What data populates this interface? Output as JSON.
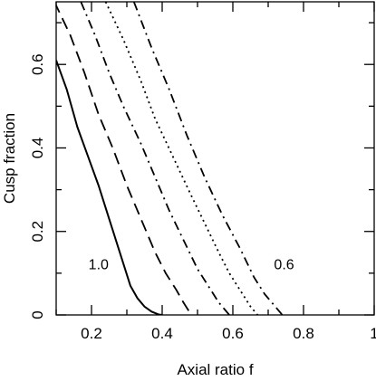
{
  "chart_data": {
    "type": "line",
    "title": "",
    "xlabel": "Axial ratio f",
    "ylabel": "Cusp fraction",
    "xlim": [
      0.1,
      1.0
    ],
    "ylim": [
      0.0,
      0.75
    ],
    "grid": false,
    "x_ticks": [
      {
        "value": 0.2,
        "label": "0.2"
      },
      {
        "value": 0.4,
        "label": "0.4"
      },
      {
        "value": 0.6,
        "label": "0.6"
      },
      {
        "value": 0.8,
        "label": "0.8"
      },
      {
        "value": 1.0,
        "label": "1"
      }
    ],
    "y_ticks": [
      {
        "value": 0.0,
        "label": "0"
      },
      {
        "value": 0.2,
        "label": "0.2"
      },
      {
        "value": 0.4,
        "label": "0.4"
      },
      {
        "value": 0.6,
        "label": "0.6"
      }
    ],
    "annotations": [
      {
        "text": "1.0",
        "x": 0.22,
        "y": 0.11
      },
      {
        "text": "0.6",
        "x": 0.745,
        "y": 0.11
      }
    ],
    "series": [
      {
        "style": "solid",
        "color": "#000000",
        "x": [
          0.1,
          0.13,
          0.16,
          0.19,
          0.22,
          0.25,
          0.28,
          0.31,
          0.33,
          0.35,
          0.37,
          0.39,
          0.4
        ],
        "y": [
          0.61,
          0.54,
          0.45,
          0.38,
          0.31,
          0.23,
          0.15,
          0.07,
          0.04,
          0.02,
          0.008,
          0.001,
          0.0
        ]
      },
      {
        "style": "long-dash",
        "color": "#000000",
        "x": [
          0.095,
          0.14,
          0.18,
          0.22,
          0.26,
          0.3,
          0.34,
          0.38,
          0.41,
          0.44,
          0.46,
          0.475,
          0.48
        ],
        "y": [
          0.75,
          0.67,
          0.58,
          0.48,
          0.4,
          0.31,
          0.23,
          0.15,
          0.1,
          0.06,
          0.03,
          0.01,
          0.0
        ]
      },
      {
        "style": "dash-dot",
        "color": "#000000",
        "x": [
          0.17,
          0.21,
          0.25,
          0.29,
          0.34,
          0.38,
          0.42,
          0.46,
          0.5,
          0.53,
          0.56,
          0.58,
          0.59
        ],
        "y": [
          0.75,
          0.67,
          0.58,
          0.5,
          0.41,
          0.33,
          0.25,
          0.18,
          0.11,
          0.07,
          0.03,
          0.01,
          0.0
        ]
      },
      {
        "style": "dotted",
        "color": "#000000",
        "x": [
          0.24,
          0.29,
          0.34,
          0.38,
          0.43,
          0.48,
          0.52,
          0.56,
          0.59,
          0.62,
          0.65,
          0.67
        ],
        "y": [
          0.75,
          0.66,
          0.56,
          0.47,
          0.38,
          0.29,
          0.22,
          0.15,
          0.1,
          0.06,
          0.02,
          0.0
        ]
      },
      {
        "style": "dash-dot",
        "color": "#000000",
        "x": [
          0.32,
          0.37,
          0.42,
          0.47,
          0.52,
          0.57,
          0.62,
          0.66,
          0.69,
          0.72,
          0.74
        ],
        "y": [
          0.75,
          0.64,
          0.54,
          0.43,
          0.33,
          0.24,
          0.16,
          0.09,
          0.05,
          0.02,
          0.0
        ]
      }
    ]
  }
}
